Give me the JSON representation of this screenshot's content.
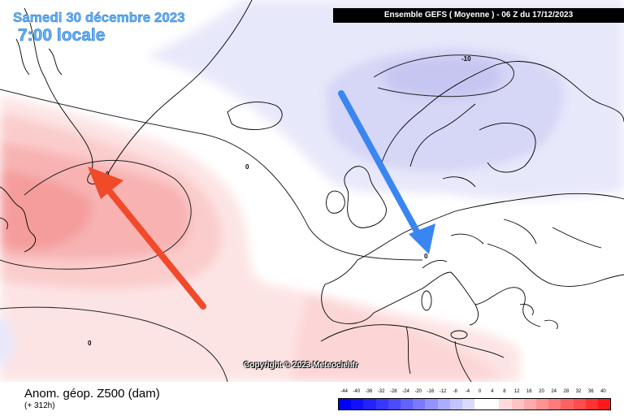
{
  "header": {
    "date": "Samedi 30 décembre 2023",
    "time": "7:00 locale",
    "run": "Ensemble GEFS  ( Moyenne )  -  06 Z du 17/12/2023"
  },
  "copyright": "Copyright © 2023 Meteociel.fr",
  "footer": {
    "variable": "Anom. géop. Z500 (dam)",
    "lead": "(+ 312h)"
  },
  "contour_labels": [
    "-10",
    "0",
    "0",
    "0",
    "0"
  ],
  "arrows": [
    {
      "name": "red-arrow",
      "color": "#f04a2a"
    },
    {
      "name": "blue-arrow",
      "color": "#3a86f0"
    }
  ],
  "colorbar": {
    "ticks": [
      "-44",
      "-40",
      "-36",
      "-32",
      "-28",
      "-24",
      "-20",
      "-16",
      "-12",
      "-8",
      "-4",
      "0",
      "4",
      "8",
      "12",
      "16",
      "20",
      "24",
      "28",
      "32",
      "36",
      "40"
    ],
    "colors": [
      "#0000ff",
      "#1111ff",
      "#2323ff",
      "#3737ff",
      "#4c4cff",
      "#6262ff",
      "#7a7aff",
      "#9393ff",
      "#ababff",
      "#c3c3ff",
      "#dadaff",
      "#ffffff",
      "#ffffff",
      "#ffdada",
      "#ffc3c3",
      "#ffabab",
      "#ff9393",
      "#ff7a7a",
      "#ff6262",
      "#ff4c4c",
      "#ff3333",
      "#ff1a1a"
    ]
  }
}
